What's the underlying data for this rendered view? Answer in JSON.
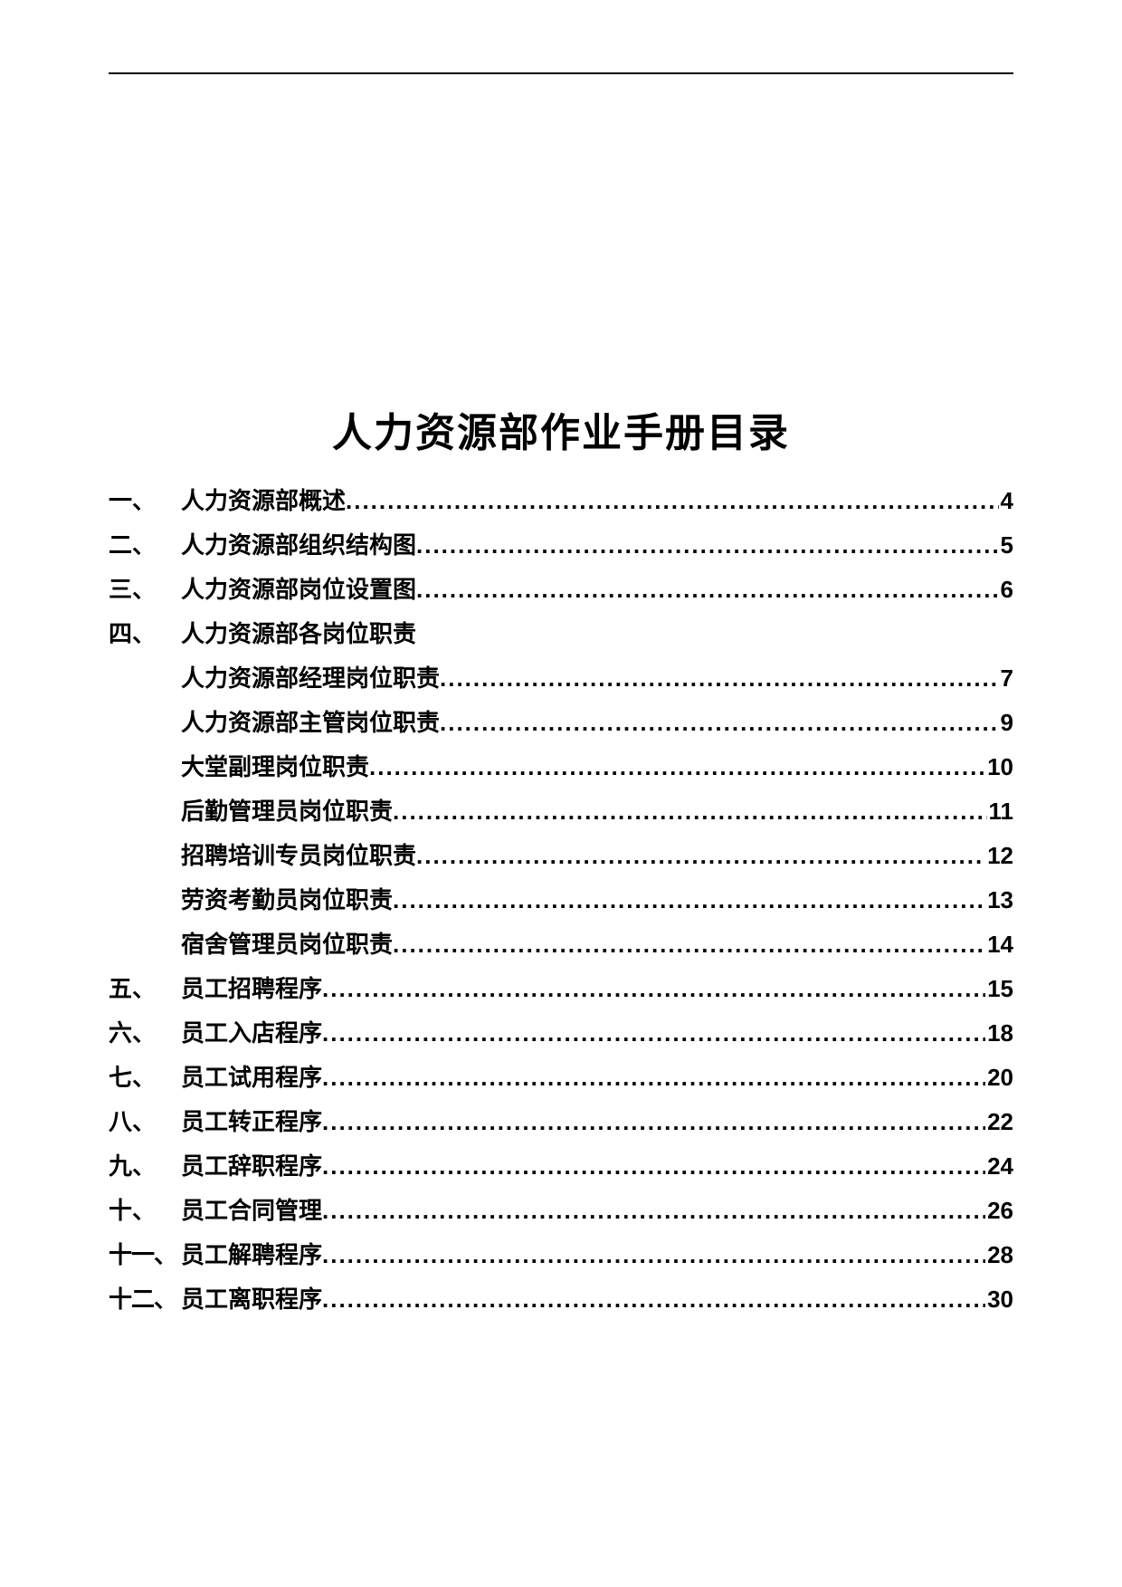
{
  "title": "人力资源部作业手册目录",
  "toc": [
    {
      "num": "一、",
      "label": "人力资源部概述",
      "page": "4",
      "indent": false
    },
    {
      "num": "二、",
      "label": "人力资源部组织结构图",
      "page": "5",
      "indent": false
    },
    {
      "num": "三、",
      "label": "人力资源部岗位设置图",
      "page": "6",
      "indent": false
    },
    {
      "num": "四、",
      "label": "人力资源部各岗位职责",
      "page": "",
      "indent": false
    },
    {
      "num": "",
      "label": "人力资源部经理岗位职责",
      "page": "7",
      "indent": true
    },
    {
      "num": "",
      "label": "人力资源部主管岗位职责",
      "page": "9",
      "indent": true
    },
    {
      "num": "",
      "label": "大堂副理岗位职责",
      "page": "10",
      "indent": true
    },
    {
      "num": "",
      "label": "后勤管理员岗位职责",
      "page": "11",
      "indent": true
    },
    {
      "num": "",
      "label": "招聘培训专员岗位职责",
      "page": "12",
      "indent": true
    },
    {
      "num": "",
      "label": "劳资考勤员岗位职责",
      "page": "13",
      "indent": true
    },
    {
      "num": "",
      "label": "宿舍管理员岗位职责",
      "page": "14",
      "indent": true
    },
    {
      "num": "五、",
      "label": "员工招聘程序",
      "page": "15",
      "indent": false
    },
    {
      "num": "六、",
      "label": "员工入店程序",
      "page": "18",
      "indent": false
    },
    {
      "num": "七、",
      "label": "员工试用程序",
      "page": "20",
      "indent": false
    },
    {
      "num": "八、",
      "label": "员工转正程序",
      "page": "22",
      "indent": false
    },
    {
      "num": "九、",
      "label": "员工辞职程序",
      "page": "24",
      "indent": false
    },
    {
      "num": "十、",
      "label": "员工合同管理",
      "page": "26",
      "indent": false
    },
    {
      "num": "十一、",
      "label": "员工解聘程序",
      "page": "28",
      "indent": false,
      "wide": true
    },
    {
      "num": "十二、",
      "label": "员工离职程序",
      "page": "30",
      "indent": false,
      "wide": true
    }
  ]
}
